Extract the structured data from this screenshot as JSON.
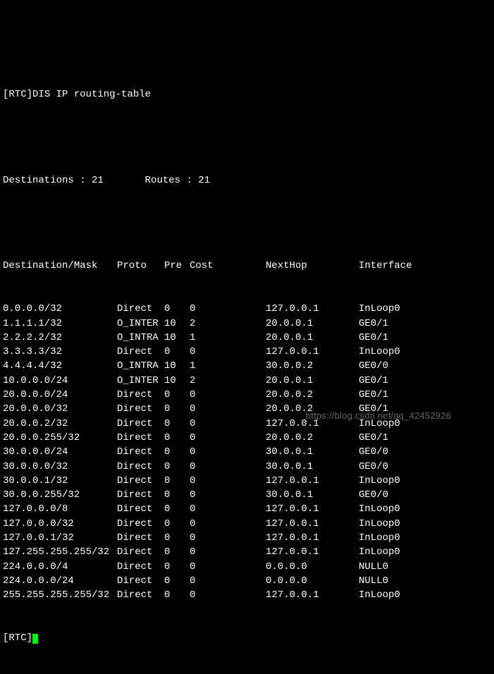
{
  "prompt_prefix": "[RTC]",
  "command": "DIS IP routing-table",
  "summary": {
    "destinations_label": "Destinations : ",
    "destinations_value": "21",
    "routes_label": "Routes : ",
    "routes_value": "21"
  },
  "headers": {
    "destination": "Destination/Mask",
    "proto": "Proto",
    "pre": "Pre",
    "cost": "Cost",
    "nexthop": "NextHop",
    "interface": "Interface"
  },
  "rows": [
    {
      "dest": "0.0.0.0/32",
      "proto": "Direct",
      "pre": "0",
      "cost": "0",
      "nexthop": "127.0.0.1",
      "iface": "InLoop0"
    },
    {
      "dest": "1.1.1.1/32",
      "proto": "O_INTER",
      "pre": "10",
      "cost": "2",
      "nexthop": "20.0.0.1",
      "iface": "GE0/1"
    },
    {
      "dest": "2.2.2.2/32",
      "proto": "O_INTRA",
      "pre": "10",
      "cost": "1",
      "nexthop": "20.0.0.1",
      "iface": "GE0/1"
    },
    {
      "dest": "3.3.3.3/32",
      "proto": "Direct",
      "pre": "0",
      "cost": "0",
      "nexthop": "127.0.0.1",
      "iface": "InLoop0"
    },
    {
      "dest": "4.4.4.4/32",
      "proto": "O_INTRA",
      "pre": "10",
      "cost": "1",
      "nexthop": "30.0.0.2",
      "iface": "GE0/0"
    },
    {
      "dest": "10.0.0.0/24",
      "proto": "O_INTER",
      "pre": "10",
      "cost": "2",
      "nexthop": "20.0.0.1",
      "iface": "GE0/1"
    },
    {
      "dest": "20.0.0.0/24",
      "proto": "Direct",
      "pre": "0",
      "cost": "0",
      "nexthop": "20.0.0.2",
      "iface": "GE0/1"
    },
    {
      "dest": "20.0.0.0/32",
      "proto": "Direct",
      "pre": "0",
      "cost": "0",
      "nexthop": "20.0.0.2",
      "iface": "GE0/1"
    },
    {
      "dest": "20.0.0.2/32",
      "proto": "Direct",
      "pre": "0",
      "cost": "0",
      "nexthop": "127.0.0.1",
      "iface": "InLoop0"
    },
    {
      "dest": "20.0.0.255/32",
      "proto": "Direct",
      "pre": "0",
      "cost": "0",
      "nexthop": "20.0.0.2",
      "iface": "GE0/1"
    },
    {
      "dest": "30.0.0.0/24",
      "proto": "Direct",
      "pre": "0",
      "cost": "0",
      "nexthop": "30.0.0.1",
      "iface": "GE0/0"
    },
    {
      "dest": "30.0.0.0/32",
      "proto": "Direct",
      "pre": "0",
      "cost": "0",
      "nexthop": "30.0.0.1",
      "iface": "GE0/0"
    },
    {
      "dest": "30.0.0.1/32",
      "proto": "Direct",
      "pre": "0",
      "cost": "0",
      "nexthop": "127.0.0.1",
      "iface": "InLoop0"
    },
    {
      "dest": "30.0.0.255/32",
      "proto": "Direct",
      "pre": "0",
      "cost": "0",
      "nexthop": "30.0.0.1",
      "iface": "GE0/0"
    },
    {
      "dest": "127.0.0.0/8",
      "proto": "Direct",
      "pre": "0",
      "cost": "0",
      "nexthop": "127.0.0.1",
      "iface": "InLoop0"
    },
    {
      "dest": "127.0.0.0/32",
      "proto": "Direct",
      "pre": "0",
      "cost": "0",
      "nexthop": "127.0.0.1",
      "iface": "InLoop0"
    },
    {
      "dest": "127.0.0.1/32",
      "proto": "Direct",
      "pre": "0",
      "cost": "0",
      "nexthop": "127.0.0.1",
      "iface": "InLoop0"
    },
    {
      "dest": "127.255.255.255/32",
      "proto": "Direct",
      "pre": "0",
      "cost": "0",
      "nexthop": "127.0.0.1",
      "iface": "InLoop0"
    },
    {
      "dest": "224.0.0.0/4",
      "proto": "Direct",
      "pre": "0",
      "cost": "0",
      "nexthop": "0.0.0.0",
      "iface": "NULL0"
    },
    {
      "dest": "224.0.0.0/24",
      "proto": "Direct",
      "pre": "0",
      "cost": "0",
      "nexthop": "0.0.0.0",
      "iface": "NULL0"
    },
    {
      "dest": "255.255.255.255/32",
      "proto": "Direct",
      "pre": "0",
      "cost": "0",
      "nexthop": "127.0.0.1",
      "iface": "InLoop0"
    }
  ],
  "bottom_prompt": "[RTC]",
  "watermark": "https://blog.csdn.net/qq_42452926"
}
